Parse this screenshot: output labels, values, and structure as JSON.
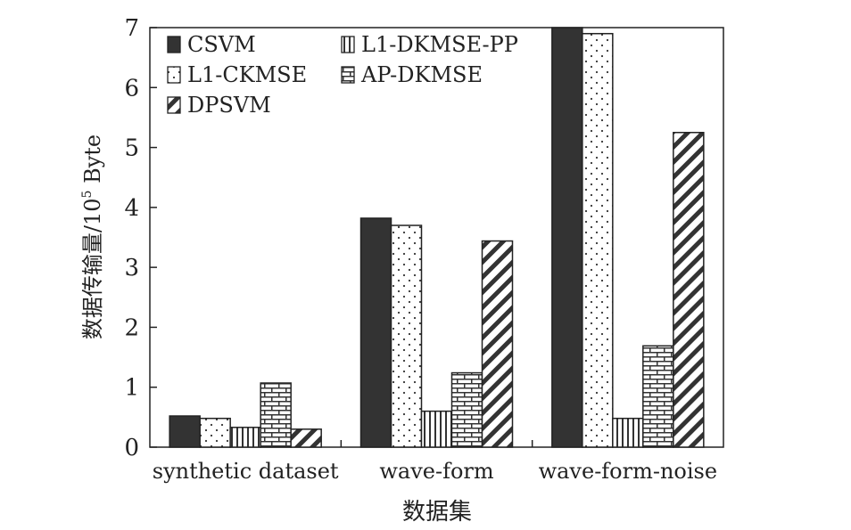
{
  "chart_data": {
    "type": "bar",
    "title": "",
    "xlabel": "数据集",
    "ylabel": "数据传输量/10",
    "ylabel_sup": "5",
    "ylabel_unit": " Byte",
    "ylim": [
      0,
      7
    ],
    "yticks": [
      0,
      1,
      2,
      3,
      4,
      5,
      6,
      7
    ],
    "grid": false,
    "legend_position": "top-left",
    "categories": [
      "synthetic dataset",
      "wave-form",
      "wave-form-noise"
    ],
    "series": [
      {
        "name": "CSVM",
        "pattern": "solid",
        "color": "#333333",
        "values": [
          0.52,
          3.82,
          7.0
        ]
      },
      {
        "name": "L1-CKMSE",
        "pattern": "dots",
        "color": "#ffffff",
        "values": [
          0.48,
          3.7,
          6.9
        ]
      },
      {
        "name": "L1-DKMSE-PP",
        "pattern": "vlines",
        "color": "#ffffff",
        "values": [
          0.33,
          0.6,
          0.48
        ]
      },
      {
        "name": "AP-DKMSE",
        "pattern": "bricks",
        "color": "#ffffff",
        "values": [
          1.07,
          1.24,
          1.69
        ]
      },
      {
        "name": "DPSVM",
        "pattern": "diagonal",
        "color": "#ffffff",
        "values": [
          0.3,
          3.44,
          5.25
        ]
      }
    ],
    "legend_order": [
      "CSVM",
      "L1-DKMSE-PP",
      "L1-CKMSE",
      "AP-DKMSE",
      "DPSVM"
    ]
  }
}
